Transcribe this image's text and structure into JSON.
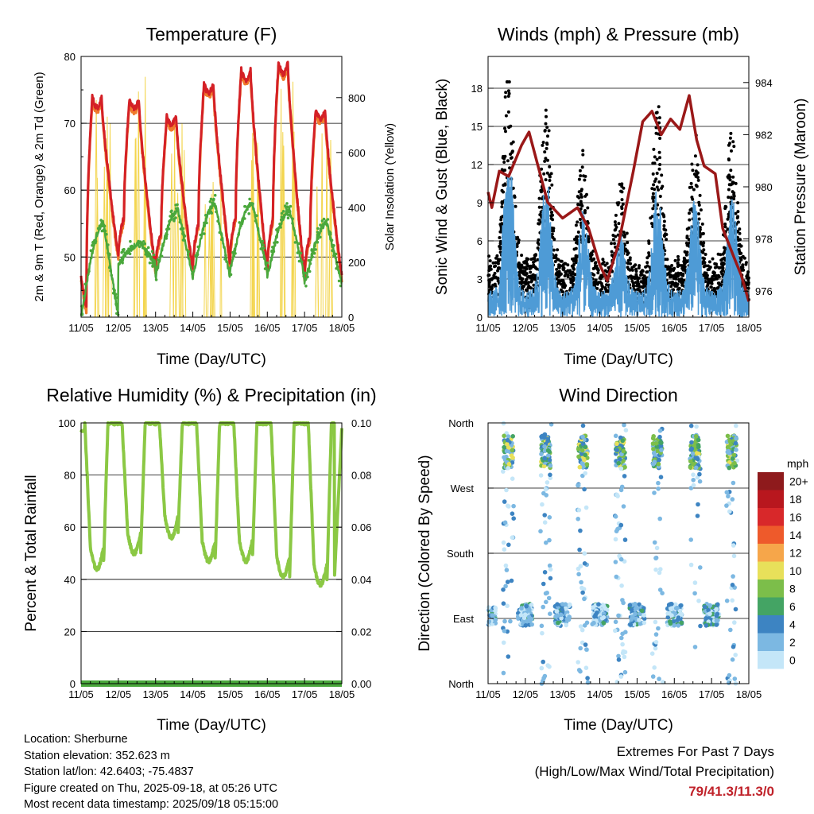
{
  "panels": {
    "temperature": {
      "title": "Temperature (F)",
      "ylabel_left": "2m & 9m T (Red, Orange) & 2m Td (Green)",
      "ylabel_right": "Solar Insolation (Yellow)",
      "xlabel": "Time (Day/UTC)"
    },
    "winds": {
      "title": "Winds (mph) & Pressure (mb)",
      "ylabel_left": "Sonic Wind & Gust (Blue, Black)",
      "ylabel_right": "Station Pressure (Maroon)",
      "xlabel": "Time (Day/UTC)"
    },
    "humidity": {
      "title": "Relative Humidity (%) & Precipitation (in)",
      "ylabel_left": "Percent & Total Rainfall",
      "xlabel": "Time (Day/UTC)"
    },
    "direction": {
      "title": "Wind Direction",
      "ylabel_left": "Direction (Colored By Speed)",
      "xlabel": "Time (Day/UTC)"
    }
  },
  "colorbar": {
    "unit": "mph",
    "labels": [
      "20+",
      "18",
      "16",
      "14",
      "12",
      "10",
      "8",
      "6",
      "4",
      "2",
      "0"
    ],
    "colors": [
      "#8e1a1c",
      "#b8171e",
      "#d8282a",
      "#ee5a2b",
      "#f6a64a",
      "#e8e05a",
      "#7cbe4a",
      "#44a464",
      "#3d84c2",
      "#7cb8e2",
      "#c4e6f8"
    ]
  },
  "info": {
    "location": "Location: Sherburne",
    "elevation": "Station elevation: 352.623 m",
    "latlon": "Station lat/lon: 42.6403; -75.4837",
    "created": "Figure created on Thu, 2025-09-18, at 05:26 UTC",
    "recent": "Most recent data timestamp: 2025/09/18 05:15:00"
  },
  "extremes": {
    "line1": "Extremes For Past 7 Days",
    "line2": "(High/Low/Max Wind/Total Precipitation)",
    "value": "79/41.3/11.3/0"
  },
  "chart_data": [
    {
      "type": "line",
      "id": "temperature",
      "x": [
        "11/05",
        "12/05",
        "13/05",
        "14/05",
        "15/05",
        "16/05",
        "17/05",
        "18/05"
      ],
      "ylim": [
        41,
        80
      ],
      "yticks": [
        50,
        60,
        70,
        80
      ],
      "y2lim": [
        0,
        950
      ],
      "y2ticks": [
        0,
        200,
        400,
        600,
        800
      ],
      "colors": {
        "t2m": "#d42026",
        "t9m": "#f07b2b",
        "td2m": "#4aa83c",
        "solar": "#f3d54e"
      },
      "daily_max_t": [
        74,
        73.5,
        71,
        76,
        78,
        79,
        72
      ],
      "daily_min_t": [
        42,
        50,
        48,
        48,
        49,
        48,
        47
      ],
      "td_max": [
        55,
        52,
        57,
        58,
        58,
        57,
        55
      ],
      "solar_peak": [
        840,
        950,
        830,
        640,
        790,
        860,
        720
      ]
    },
    {
      "type": "line",
      "id": "winds",
      "x": [
        "11/05",
        "12/05",
        "13/05",
        "14/05",
        "15/05",
        "16/05",
        "17/05",
        "18/05"
      ],
      "ylim": [
        0,
        20.5
      ],
      "yticks": [
        0,
        3,
        6,
        9,
        12,
        15,
        18
      ],
      "y2lim": [
        975,
        985
      ],
      "y2ticks": [
        976,
        978,
        980,
        982,
        984
      ],
      "colors": {
        "wind": "#4e9bd6",
        "gust": "#000000",
        "pressure": "#9a1818"
      },
      "pressure": [
        [
          0,
          979.8
        ],
        [
          0.1,
          979.2
        ],
        [
          0.3,
          980.6
        ],
        [
          0.55,
          980.4
        ],
        [
          0.9,
          981.6
        ],
        [
          1.1,
          982.1
        ],
        [
          1.6,
          979.4
        ],
        [
          2.0,
          978.8
        ],
        [
          2.4,
          979.2
        ],
        [
          2.7,
          978.4
        ],
        [
          3.0,
          977.0
        ],
        [
          3.2,
          976.4
        ],
        [
          3.5,
          977.8
        ],
        [
          3.9,
          980.6
        ],
        [
          4.15,
          982.5
        ],
        [
          4.4,
          982.9
        ],
        [
          4.65,
          982.0
        ],
        [
          4.9,
          982.6
        ],
        [
          5.15,
          982.2
        ],
        [
          5.4,
          983.5
        ],
        [
          5.6,
          981.8
        ],
        [
          5.8,
          980.8
        ],
        [
          6.1,
          980.5
        ],
        [
          6.3,
          978.4
        ],
        [
          6.6,
          977.3
        ],
        [
          6.8,
          976.6
        ],
        [
          7.0,
          975.6
        ]
      ]
    },
    {
      "type": "line",
      "id": "humidity",
      "x": [
        "11/05",
        "12/05",
        "13/05",
        "14/05",
        "15/05",
        "16/05",
        "17/05",
        "18/05"
      ],
      "ylim": [
        0,
        100
      ],
      "yticks": [
        0,
        20,
        40,
        60,
        80,
        100
      ],
      "y2lim": [
        0,
        0.1
      ],
      "y2ticks": [
        "0.00",
        "0.02",
        "0.04",
        "0.06",
        "0.08",
        "0.10"
      ],
      "colors": {
        "rh": "#8bc844",
        "precip": "#4aa83c"
      },
      "daily_min_rh": [
        44,
        50,
        56,
        47,
        47,
        41,
        38
      ],
      "precip_total": 0
    },
    {
      "type": "scatter",
      "id": "direction",
      "x": [
        "11/05",
        "12/05",
        "13/05",
        "14/05",
        "15/05",
        "16/05",
        "17/05",
        "18/05"
      ],
      "yticks": [
        "North",
        "East",
        "South",
        "West",
        "North"
      ]
    }
  ]
}
